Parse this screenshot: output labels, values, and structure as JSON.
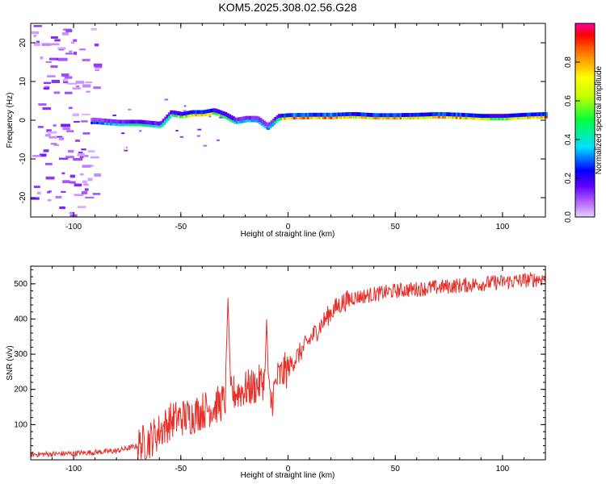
{
  "title": "KOM5.2025.308.02.56.G28",
  "chart_data": [
    {
      "type": "heatmap",
      "xlabel": "Height of straight line (km)",
      "ylabel": "Frequency (Hz)",
      "xlim": [
        -120,
        120
      ],
      "ylim": [
        -25,
        25
      ],
      "xticks": [
        -100,
        -50,
        0,
        50,
        100
      ],
      "yticks": [
        -20,
        -10,
        0,
        10,
        20
      ],
      "colorbar": {
        "label": "Normalized spectral amplitude",
        "range": [
          0,
          1
        ],
        "ticks": [
          0.0,
          0.2,
          0.4,
          0.6,
          0.8
        ],
        "colormap": "rainbow"
      },
      "ridge": {
        "description": "signal frequency track vs height",
        "x": [
          -90,
          -80,
          -70,
          -60,
          -55,
          -50,
          -45,
          -40,
          -35,
          -30,
          -25,
          -20,
          -15,
          -10,
          -5,
          0,
          10,
          20,
          30,
          40,
          50,
          60,
          70,
          80,
          90,
          100,
          110,
          120
        ],
        "y": [
          -1,
          -1.5,
          -1.5,
          -2,
          1,
          0.5,
          1,
          1,
          1.5,
          0.5,
          -1,
          -0.5,
          -0.5,
          -2.5,
          0,
          0.2,
          0.3,
          0.3,
          0.5,
          0.2,
          0.2,
          0.3,
          0.5,
          0.3,
          0,
          0,
          0.3,
          0.5
        ],
        "amplitude": [
          0.3,
          0.4,
          0.5,
          0.4,
          0.5,
          0.6,
          0.7,
          0.8,
          0.6,
          0.5,
          0.4,
          0.4,
          0.4,
          0.3,
          0.5,
          0.9,
          0.8,
          0.85,
          0.7,
          0.75,
          0.8,
          0.7,
          0.85,
          0.8,
          0.6,
          0.55,
          0.7,
          0.8
        ]
      },
      "noise_region_x": [
        -120,
        -90
      ]
    },
    {
      "type": "line",
      "xlabel": "Height of straight line (km)",
      "ylabel": "SNR (v/v)",
      "xlim": [
        -120,
        120
      ],
      "ylim": [
        0,
        550
      ],
      "xticks": [
        -100,
        -50,
        0,
        50,
        100
      ],
      "yticks": [
        100,
        200,
        300,
        400,
        500
      ],
      "series": [
        {
          "name": "SNR",
          "color": "#e8302a",
          "x": [
            -120,
            -100,
            -80,
            -70,
            -65,
            -60,
            -55,
            -50,
            -45,
            -40,
            -35,
            -30,
            -28,
            -25,
            -20,
            -15,
            -10,
            -8,
            -5,
            0,
            5,
            10,
            15,
            20,
            25,
            30,
            40,
            50,
            60,
            70,
            80,
            90,
            100,
            110,
            120
          ],
          "y": [
            15,
            18,
            25,
            40,
            55,
            80,
            110,
            120,
            125,
            140,
            150,
            165,
            180,
            190,
            200,
            210,
            230,
            160,
            230,
            260,
            300,
            340,
            380,
            420,
            445,
            460,
            470,
            480,
            485,
            490,
            495,
            500,
            505,
            510,
            515
          ]
        }
      ],
      "spikes": [
        {
          "x": -28,
          "y": 460
        },
        {
          "x": -10,
          "y": 400
        }
      ]
    }
  ]
}
